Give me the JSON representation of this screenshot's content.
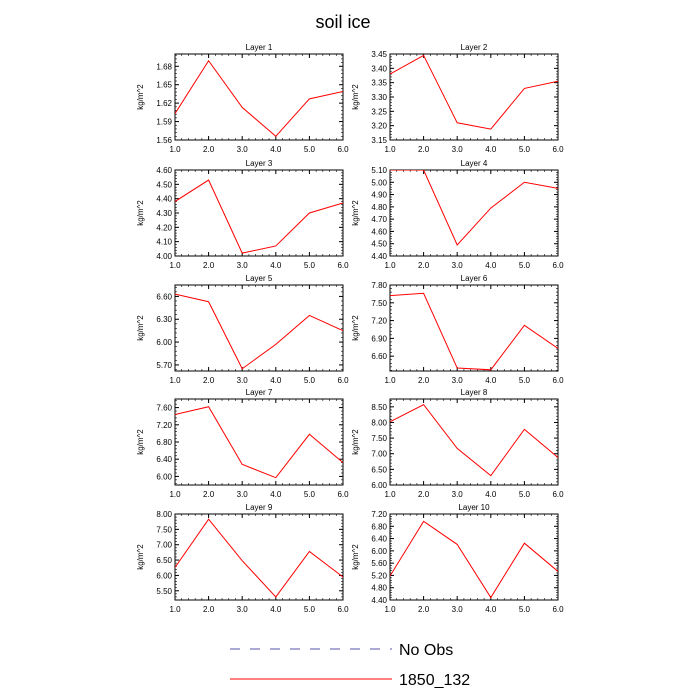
{
  "title": "soil ice",
  "colors": {
    "series": "#ff0000",
    "obs": "#5555aa",
    "axis": "#000000"
  },
  "legend": [
    {
      "label": "No Obs",
      "style": "dashed",
      "color": "#5555aa"
    },
    {
      "label": "1850_132",
      "style": "solid",
      "color": "#ff0000"
    }
  ],
  "chart_data": [
    {
      "type": "line",
      "title": "Layer 1",
      "ylabel": "kg/m^2",
      "x": [
        1,
        2,
        3,
        4,
        5,
        6
      ],
      "xticks": [
        "1.0",
        "2.0",
        "3.0",
        "4.0",
        "5.0",
        "6.0"
      ],
      "xlim": [
        1,
        6
      ],
      "ylim": [
        1.56,
        1.7
      ],
      "yticks": [
        "1.56",
        "1.59",
        "1.62",
        "1.65",
        "1.68"
      ],
      "series": [
        {
          "name": "1850_132",
          "values": [
            1.603,
            1.689,
            1.613,
            1.566,
            1.627,
            1.639
          ]
        }
      ]
    },
    {
      "type": "line",
      "title": "Layer 2",
      "ylabel": "kg/m^2",
      "x": [
        1,
        2,
        3,
        4,
        5,
        6
      ],
      "xticks": [
        "1.0",
        "2.0",
        "3.0",
        "4.0",
        "5.0",
        "6.0"
      ],
      "xlim": [
        1,
        6
      ],
      "ylim": [
        3.15,
        3.45
      ],
      "yticks": [
        "3.15",
        "3.20",
        "3.25",
        "3.30",
        "3.35",
        "3.40",
        "3.45"
      ],
      "series": [
        {
          "name": "1850_132",
          "values": [
            3.38,
            3.445,
            3.21,
            3.188,
            3.33,
            3.355
          ]
        }
      ]
    },
    {
      "type": "line",
      "title": "Layer 3",
      "ylabel": "kg/m^2",
      "x": [
        1,
        2,
        3,
        4,
        5,
        6
      ],
      "xticks": [
        "1.0",
        "2.0",
        "3.0",
        "4.0",
        "5.0",
        "6.0"
      ],
      "xlim": [
        1,
        6
      ],
      "ylim": [
        4.0,
        4.6
      ],
      "yticks": [
        "4.00",
        "4.10",
        "4.20",
        "4.30",
        "4.40",
        "4.50",
        "4.60"
      ],
      "series": [
        {
          "name": "1850_132",
          "values": [
            4.38,
            4.53,
            4.02,
            4.07,
            4.3,
            4.37
          ]
        }
      ]
    },
    {
      "type": "line",
      "title": "Layer 4",
      "ylabel": "kg/m^2",
      "x": [
        1,
        2,
        3,
        4,
        5,
        6
      ],
      "xticks": [
        "1.0",
        "2.0",
        "3.0",
        "4.0",
        "5.0",
        "6.0"
      ],
      "xlim": [
        1,
        6
      ],
      "ylim": [
        4.4,
        5.1
      ],
      "yticks": [
        "4.40",
        "4.50",
        "4.60",
        "4.70",
        "4.80",
        "4.90",
        "5.00",
        "5.10"
      ],
      "series": [
        {
          "name": "1850_132",
          "values": [
            5.1,
            5.1,
            4.49,
            4.79,
            5.0,
            4.95
          ]
        }
      ]
    },
    {
      "type": "line",
      "title": "Layer 5",
      "ylabel": "kg/m^2",
      "x": [
        1,
        2,
        3,
        4,
        5,
        6
      ],
      "xticks": [
        "1.0",
        "2.0",
        "3.0",
        "4.0",
        "5.0",
        "6.0"
      ],
      "xlim": [
        1,
        6
      ],
      "ylim": [
        5.62,
        6.75
      ],
      "yticks": [
        "5.70",
        "6.00",
        "6.30",
        "6.60"
      ],
      "series": [
        {
          "name": "1850_132",
          "values": [
            6.63,
            6.53,
            5.65,
            5.97,
            6.35,
            6.15
          ]
        }
      ]
    },
    {
      "type": "line",
      "title": "Layer 6",
      "ylabel": "kg/m^2",
      "x": [
        1,
        2,
        3,
        4,
        5,
        6
      ],
      "xticks": [
        "1.0",
        "2.0",
        "3.0",
        "4.0",
        "5.0",
        "6.0"
      ],
      "xlim": [
        1,
        6
      ],
      "ylim": [
        6.35,
        7.8
      ],
      "yticks": [
        "6.60",
        "6.90",
        "7.20",
        "7.50",
        "7.80"
      ],
      "series": [
        {
          "name": "1850_132",
          "values": [
            7.62,
            7.66,
            6.4,
            6.37,
            7.12,
            6.73
          ]
        }
      ]
    },
    {
      "type": "line",
      "title": "Layer 7",
      "ylabel": "kg/m^2",
      "x": [
        1,
        2,
        3,
        4,
        5,
        6
      ],
      "xticks": [
        "1.0",
        "2.0",
        "3.0",
        "4.0",
        "5.0",
        "6.0"
      ],
      "xlim": [
        1,
        6
      ],
      "ylim": [
        5.8,
        7.8
      ],
      "yticks": [
        "6.00",
        "6.40",
        "6.80",
        "7.20",
        "7.60"
      ],
      "series": [
        {
          "name": "1850_132",
          "values": [
            7.44,
            7.62,
            6.28,
            5.97,
            6.98,
            6.32
          ]
        }
      ]
    },
    {
      "type": "line",
      "title": "Layer 8",
      "ylabel": "kg/m^2",
      "x": [
        1,
        2,
        3,
        4,
        5,
        6
      ],
      "xticks": [
        "1.0",
        "2.0",
        "3.0",
        "4.0",
        "5.0",
        "6.0"
      ],
      "xlim": [
        1,
        6
      ],
      "ylim": [
        6.0,
        8.75
      ],
      "yticks": [
        "6.00",
        "6.50",
        "7.00",
        "7.50",
        "8.00",
        "8.50"
      ],
      "series": [
        {
          "name": "1850_132",
          "values": [
            8.02,
            8.57,
            7.17,
            6.3,
            7.78,
            6.88
          ]
        }
      ]
    },
    {
      "type": "line",
      "title": "Layer 9",
      "ylabel": "kg/m^2",
      "x": [
        1,
        2,
        3,
        4,
        5,
        6
      ],
      "xticks": [
        "1.0",
        "2.0",
        "3.0",
        "4.0",
        "5.0",
        "6.0"
      ],
      "xlim": [
        1,
        6
      ],
      "ylim": [
        5.2,
        8.0
      ],
      "yticks": [
        "5.50",
        "6.00",
        "6.50",
        "7.00",
        "7.50",
        "8.00"
      ],
      "series": [
        {
          "name": "1850_132",
          "values": [
            6.26,
            7.83,
            6.48,
            5.3,
            6.78,
            5.95
          ]
        }
      ]
    },
    {
      "type": "line",
      "title": "Layer 10",
      "ylabel": "kg/m^2",
      "x": [
        1,
        2,
        3,
        4,
        5,
        6
      ],
      "xticks": [
        "1.0",
        "2.0",
        "3.0",
        "4.0",
        "5.0",
        "6.0"
      ],
      "xlim": [
        1,
        6
      ],
      "ylim": [
        4.4,
        7.2
      ],
      "yticks": [
        "4.40",
        "4.80",
        "5.20",
        "5.60",
        "6.00",
        "6.40",
        "6.80",
        "7.20"
      ],
      "series": [
        {
          "name": "1850_132",
          "values": [
            5.18,
            6.96,
            6.21,
            4.48,
            6.25,
            5.33
          ]
        }
      ]
    }
  ]
}
